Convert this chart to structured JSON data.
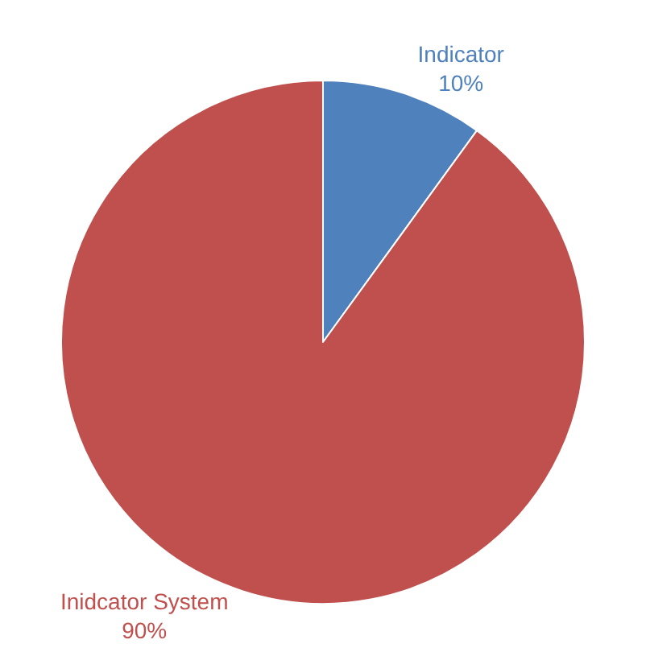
{
  "chart_data": {
    "type": "pie",
    "categories": [
      "Indicator",
      "Inidcator System"
    ],
    "values": [
      10,
      90
    ],
    "colors": [
      "#4f81bd",
      "#c0504d"
    ],
    "value_labels": [
      "10%",
      "90%"
    ],
    "legend": false
  }
}
